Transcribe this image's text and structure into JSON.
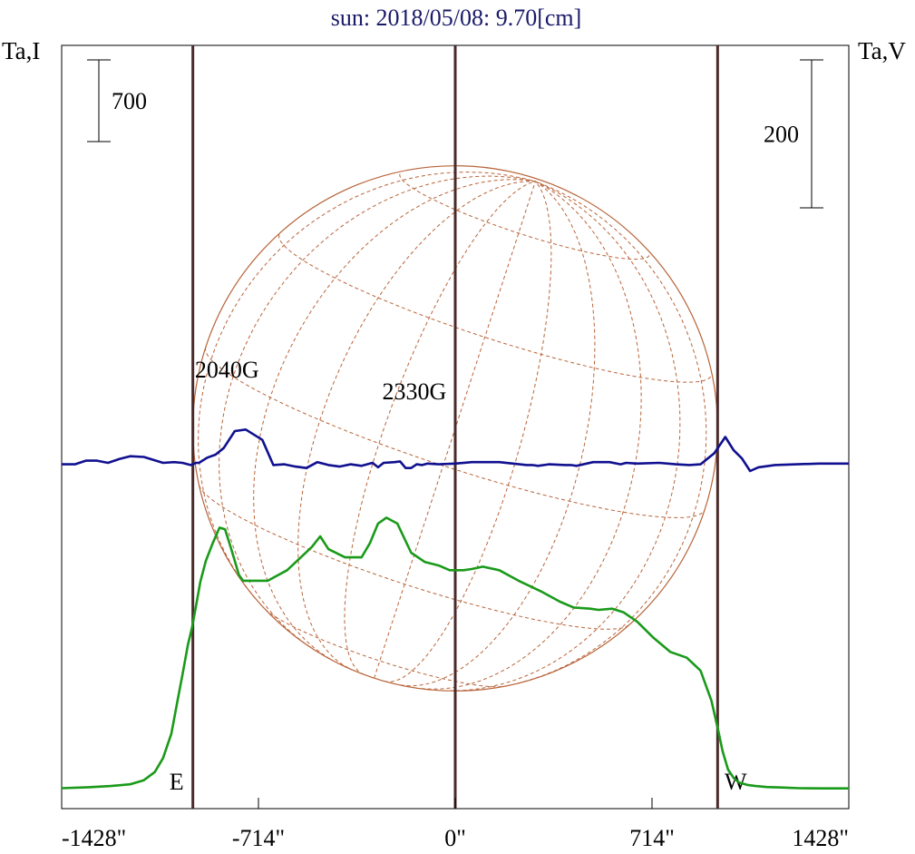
{
  "chart_data": {
    "type": "line",
    "title": "sun: 2018/05/08: 9.70[cm]",
    "left_axis_label": "Ta,I",
    "right_axis_label": "Ta,V",
    "xlim": [
      -1428,
      1428
    ],
    "x_ticks": [
      {
        "value": -1428,
        "label": "-1428\""
      },
      {
        "value": -714,
        "label": "-714\""
      },
      {
        "value": 0,
        "label": "0\""
      },
      {
        "value": 714,
        "label": "714\""
      },
      {
        "value": 1428,
        "label": "1428\""
      }
    ],
    "vertical_markers": [
      {
        "x": -952,
        "label": "E"
      },
      {
        "x": 0,
        "label": ""
      },
      {
        "x": 952,
        "label": "W"
      }
    ],
    "scale_bars": [
      {
        "axis": "left",
        "label": "700",
        "value": 700
      },
      {
        "axis": "right",
        "label": "200",
        "value": 200
      }
    ],
    "annotations": [
      {
        "text": "2040G",
        "x": -960
      },
      {
        "text": "2330G",
        "x": -280
      }
    ],
    "solar_disk": {
      "radius_arcsec": 952,
      "grid": true
    },
    "colors": {
      "stokes_i": "#1a9a1a",
      "stokes_v": "#101090",
      "markers": "#4a2a2a",
      "disk": "#b8643a",
      "title": "#1a1a6a",
      "frame": "#000000"
    },
    "series": [
      {
        "axis": "left",
        "color": "#1a9a1a",
        "x": [
          -1428,
          -1330,
          -1250,
          -1180,
          -1130,
          -1090,
          -1060,
          -1030,
          -1010,
          -990,
          -970,
          -955,
          -940,
          -925,
          -905,
          -880,
          -855,
          -835,
          -815,
          -800,
          -785,
          -770,
          -740,
          -680,
          -610,
          -560,
          -520,
          -490,
          -460,
          -400,
          -340,
          -310,
          -280,
          -250,
          -210,
          -160,
          -110,
          -60,
          -20,
          30,
          60,
          100,
          160,
          230,
          310,
          380,
          430,
          490,
          520,
          570,
          610,
          660,
          720,
          780,
          840,
          890,
          930,
          955,
          970,
          990,
          1010,
          1030,
          1060,
          1090,
          1130,
          1180,
          1250,
          1330,
          1428
        ],
        "y": [
          12,
          20,
          30,
          45,
          80,
          150,
          270,
          480,
          730,
          980,
          1240,
          1390,
          1580,
          1780,
          1960,
          2110,
          2245,
          2230,
          2080,
          1960,
          1840,
          1790,
          1790,
          1790,
          1880,
          1990,
          2080,
          2170,
          2060,
          1990,
          1990,
          2110,
          2280,
          2330,
          2280,
          2030,
          1950,
          1920,
          1880,
          1880,
          1890,
          1910,
          1880,
          1790,
          1700,
          1610,
          1560,
          1550,
          1540,
          1550,
          1520,
          1440,
          1300,
          1180,
          1130,
          1020,
          760,
          500,
          330,
          170,
          100,
          60,
          40,
          30,
          22,
          18,
          12,
          10,
          10
        ]
      },
      {
        "axis": "right",
        "color": "#101090",
        "x": [
          -1428,
          -1380,
          -1340,
          -1300,
          -1260,
          -1220,
          -1180,
          -1130,
          -1060,
          -1020,
          -990,
          -960,
          -940,
          -930,
          -900,
          -870,
          -840,
          -800,
          -760,
          -700,
          -660,
          -620,
          -580,
          -540,
          -500,
          -460,
          -420,
          -380,
          -340,
          -300,
          -280,
          -260,
          -220,
          -200,
          -180,
          -160,
          -140,
          -120,
          -100,
          -60,
          0,
          60,
          160,
          260,
          280,
          300,
          340,
          400,
          420,
          440,
          500,
          560,
          600,
          620,
          660,
          740,
          800,
          850,
          890,
          910,
          940,
          980,
          1010,
          1040,
          1070,
          1100,
          1160,
          1240,
          1320,
          1428
        ],
        "y": [
          -2,
          -2,
          3,
          3,
          0,
          5,
          9,
          8,
          0,
          1,
          0,
          -3,
          0,
          0,
          7,
          11,
          20,
          43,
          45,
          31,
          -3,
          -2,
          -5,
          -7,
          1,
          -3,
          -5,
          -2,
          -4,
          0,
          -6,
          0,
          1,
          2,
          -7,
          -7,
          -2,
          -3,
          -1,
          -2,
          -1,
          1,
          1,
          -3,
          -3,
          -4,
          -2,
          -3,
          -3,
          -4,
          1,
          1,
          -2,
          0,
          -1,
          0,
          -2,
          -3,
          -2,
          4,
          13,
          35,
          17,
          6,
          -11,
          -6,
          -3,
          -2,
          -1,
          -1
        ]
      }
    ]
  }
}
